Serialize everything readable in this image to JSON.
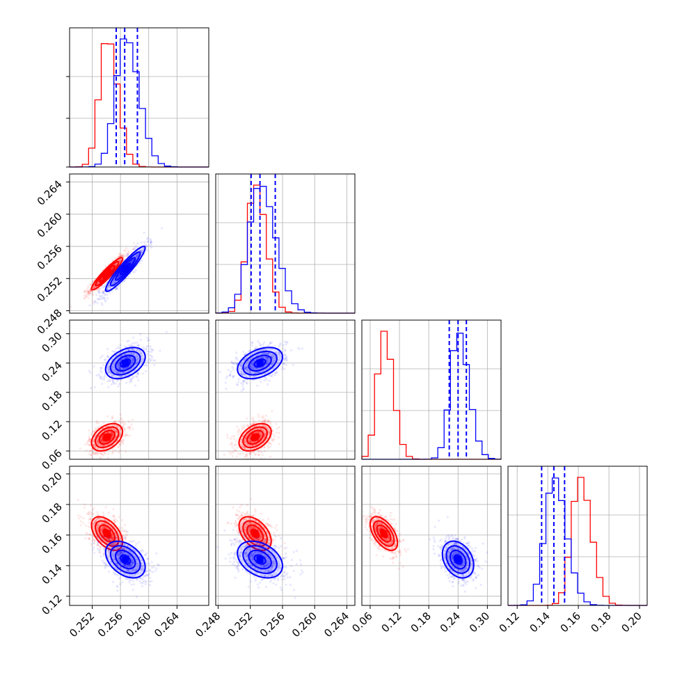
{
  "chart_data": {
    "type": "corner",
    "parameters": 4,
    "grid": true,
    "colors": {
      "red": "#ff0000",
      "blue": "#0000ff"
    },
    "series": [
      {
        "color": "#ff0000",
        "means": [
          0.2541,
          0.2526,
          0.088,
          0.161
        ],
        "stds": [
          0.0011,
          0.001,
          0.014,
          0.0055
        ],
        "quantile_lines": false
      },
      {
        "color": "#0000ff",
        "means": [
          0.2567,
          0.2532,
          0.24,
          0.144
        ],
        "stds": [
          0.0014,
          0.0014,
          0.016,
          0.006
        ],
        "quantile_lines": true,
        "quantiles": [
          [
            0.2554,
            0.2566,
            0.2584
          ],
          [
            0.2521,
            0.2532,
            0.2551
          ],
          [
            0.222,
            0.24,
            0.257
          ],
          [
            0.136,
            0.144,
            0.151
          ]
        ]
      }
    ],
    "correlations": {
      "p0_p1": 0.93,
      "p0_p3_red": -0.5,
      "p0_p3_blue": -0.4,
      "p1_p3_red": -0.45,
      "p1_p3_blue": -0.35,
      "p2_p3_red": -0.55,
      "p2_p3_blue": -0.3,
      "p0_p2": 0.4,
      "p1_p2": 0.4
    },
    "axes": [
      {
        "range": [
          0.2488,
          0.2685
        ],
        "ticks": [
          0.252,
          0.256,
          0.26,
          0.264
        ],
        "tick_labels": [
          "0.252",
          "0.256",
          "0.260",
          "0.264"
        ]
      },
      {
        "range": [
          0.2477,
          0.265
        ],
        "ticks": [
          0.248,
          0.252,
          0.256,
          0.26,
          0.264
        ],
        "tick_labels": [
          "0.248",
          "0.252",
          "0.256",
          "0.260",
          "0.264"
        ]
      },
      {
        "range": [
          0.043,
          0.328
        ],
        "ticks": [
          0.06,
          0.12,
          0.18,
          0.24,
          0.3
        ],
        "tick_labels": [
          "0.06",
          "0.12",
          "0.18",
          "0.24",
          "0.30"
        ]
      },
      {
        "range": [
          0.114,
          0.205
        ],
        "ticks": [
          0.12,
          0.14,
          0.16,
          0.18,
          0.2
        ],
        "tick_labels": [
          "0.12",
          "0.14",
          "0.16",
          "0.18",
          "0.20"
        ]
      }
    ],
    "title": "",
    "legend": []
  }
}
